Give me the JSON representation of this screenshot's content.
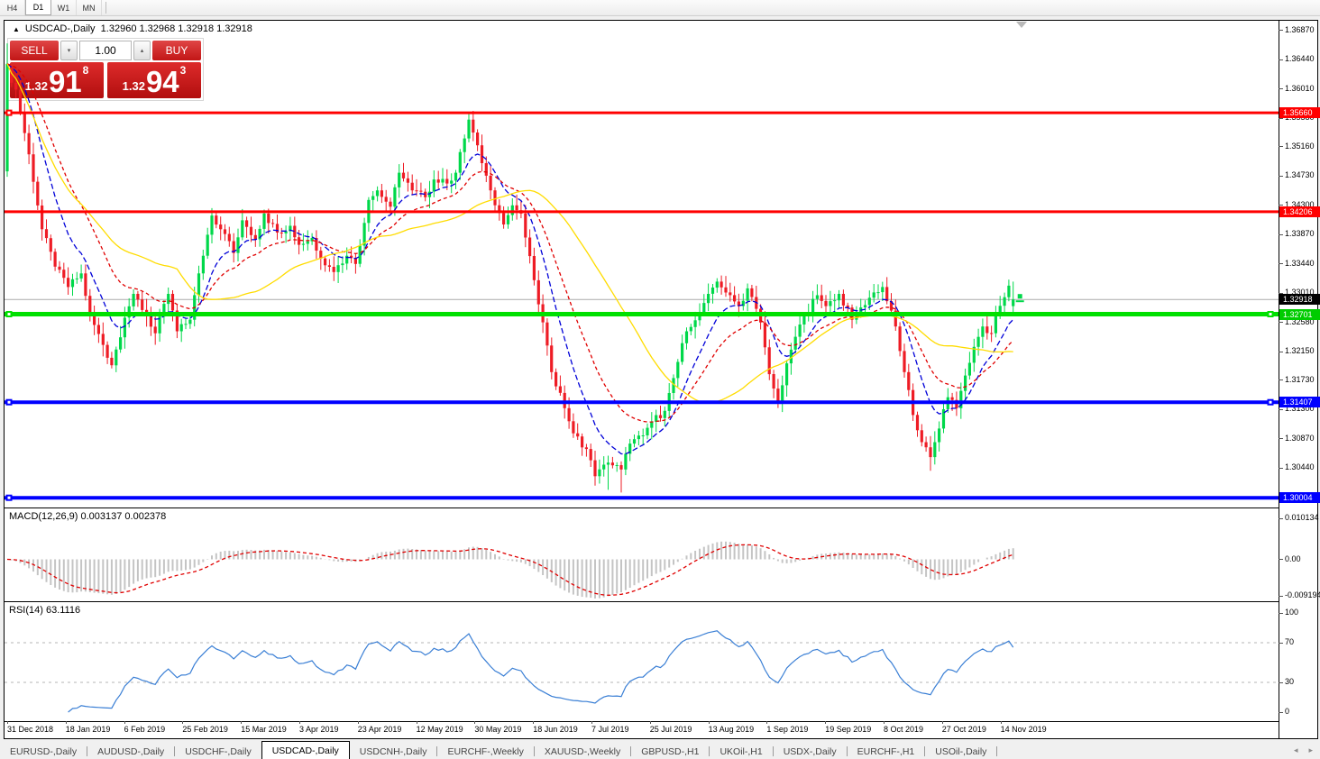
{
  "toolbar": {
    "timeframes": [
      {
        "label": "H4",
        "active": false
      },
      {
        "label": "D1",
        "active": true
      },
      {
        "label": "W1",
        "active": false
      },
      {
        "label": "MN",
        "active": false
      }
    ]
  },
  "chart": {
    "collapse_icon": "▲",
    "title": "USDCAD-,Daily",
    "quote": "1.32960 1.32968 1.32918 1.32918",
    "trade_panel": {
      "sell_label": "SELL",
      "buy_label": "BUY",
      "volume": "1.00",
      "spinner_down": "▾",
      "spinner_up": "▴",
      "sell_price": {
        "frac": "1.32",
        "big": "91",
        "sup": "8"
      },
      "buy_price": {
        "frac": "1.32",
        "big": "94",
        "sup": "3"
      }
    }
  },
  "chart_data": {
    "type": "candlestick",
    "symbol": "USDCAD",
    "timeframe": "Daily",
    "num_candles": 232,
    "colors": {
      "up": "#00D84A",
      "down": "#EE1C25",
      "hist": "#c4c4c4",
      "current_line": "#ababab"
    },
    "price_keyframes": [
      [
        0,
        1.363
      ],
      [
        2,
        1.36
      ],
      [
        5,
        1.3505
      ],
      [
        8,
        1.3395
      ],
      [
        11,
        1.334
      ],
      [
        14,
        1.331
      ],
      [
        17,
        1.333
      ],
      [
        19,
        1.3268
      ],
      [
        22,
        1.3225
      ],
      [
        24,
        1.3195
      ],
      [
        27,
        1.3265
      ],
      [
        29,
        1.33
      ],
      [
        32,
        1.3268
      ],
      [
        34,
        1.3242
      ],
      [
        37,
        1.33
      ],
      [
        39,
        1.3245
      ],
      [
        42,
        1.3262
      ],
      [
        44,
        1.333
      ],
      [
        47,
        1.3415
      ],
      [
        50,
        1.3388
      ],
      [
        52,
        1.336
      ],
      [
        54,
        1.3408
      ],
      [
        57,
        1.338
      ],
      [
        59,
        1.3418
      ],
      [
        62,
        1.339
      ],
      [
        65,
        1.34
      ],
      [
        67,
        1.3372
      ],
      [
        70,
        1.3382
      ],
      [
        72,
        1.3352
      ],
      [
        75,
        1.3332
      ],
      [
        78,
        1.3356
      ],
      [
        80,
        1.3344
      ],
      [
        83,
        1.3438
      ],
      [
        85,
        1.3452
      ],
      [
        88,
        1.3428
      ],
      [
        90,
        1.3478
      ],
      [
        93,
        1.3452
      ],
      [
        96,
        1.3442
      ],
      [
        98,
        1.3468
      ],
      [
        101,
        1.3462
      ],
      [
        103,
        1.3478
      ],
      [
        106,
        1.3556
      ],
      [
        109,
        1.3492
      ],
      [
        111,
        1.3452
      ],
      [
        114,
        1.3402
      ],
      [
        116,
        1.343
      ],
      [
        118,
        1.3418
      ],
      [
        121,
        1.332
      ],
      [
        123,
        1.3258
      ],
      [
        125,
        1.3185
      ],
      [
        128,
        1.3132
      ],
      [
        130,
        1.3095
      ],
      [
        133,
        1.3072
      ],
      [
        135,
        1.3032
      ],
      [
        138,
        1.3052
      ],
      [
        141,
        1.3042
      ],
      [
        143,
        1.308
      ],
      [
        146,
        1.3092
      ],
      [
        148,
        1.3112
      ],
      [
        151,
        1.3128
      ],
      [
        154,
        1.32
      ],
      [
        156,
        1.3245
      ],
      [
        159,
        1.3272
      ],
      [
        161,
        1.33
      ],
      [
        163,
        1.3318
      ],
      [
        165,
        1.3302
      ],
      [
        168,
        1.3282
      ],
      [
        170,
        1.3308
      ],
      [
        173,
        1.3258
      ],
      [
        175,
        1.3182
      ],
      [
        177,
        1.3142
      ],
      [
        180,
        1.3218
      ],
      [
        183,
        1.3268
      ],
      [
        186,
        1.3298
      ],
      [
        188,
        1.3282
      ],
      [
        191,
        1.33
      ],
      [
        194,
        1.3262
      ],
      [
        196,
        1.328
      ],
      [
        199,
        1.3302
      ],
      [
        201,
        1.331
      ],
      [
        204,
        1.3252
      ],
      [
        206,
        1.3185
      ],
      [
        208,
        1.3122
      ],
      [
        210,
        1.3082
      ],
      [
        212,
        1.306
      ],
      [
        214,
        1.3102
      ],
      [
        216,
        1.3148
      ],
      [
        218,
        1.3132
      ],
      [
        220,
        1.318
      ],
      [
        222,
        1.3222
      ],
      [
        224,
        1.3252
      ],
      [
        226,
        1.3242
      ],
      [
        227,
        1.3272
      ],
      [
        229,
        1.3295
      ],
      [
        230,
        1.3312
      ],
      [
        231,
        1.3292
      ]
    ],
    "candle_overrides": {
      "0": {
        "o": 1.348,
        "c": 1.3638,
        "h": 1.3668,
        "l": 1.3472
      },
      "106": {
        "h": 1.3565
      },
      "138": {
        "l": 1.3012
      },
      "141": {
        "l": 1.3008
      },
      "212": {
        "l": 1.304
      },
      "231": {
        "o": 1.3282,
        "c": 1.32918,
        "h": 1.3318,
        "l": 1.327
      }
    },
    "moving_averages": [
      {
        "name": "fast-ma",
        "period": 10,
        "color": "#0000D8",
        "dash": "6 3"
      },
      {
        "name": "mid-ma",
        "period": 21,
        "color": "#E00000",
        "dash": "4 3"
      },
      {
        "name": "slow-ma",
        "period": 40,
        "color": "#FFDC00",
        "dash": null
      }
    ],
    "hlines": [
      {
        "price": 1.3566,
        "label": "1.35660",
        "color": "#FF0000",
        "width": 3,
        "badge_bg": "#FF0000",
        "handles": [
          "left"
        ]
      },
      {
        "price": 1.34206,
        "label": "1.34206",
        "color": "#FF0000",
        "width": 3,
        "badge_bg": "#FF0000",
        "handles": []
      },
      {
        "price": 1.32701,
        "label": "1.32701",
        "color": "#00E000",
        "width": 5,
        "badge_bg": "#00CC00",
        "handles": [
          "left",
          "right"
        ]
      },
      {
        "price": 1.31407,
        "label": "1.31407",
        "color": "#0000FF",
        "width": 4,
        "badge_bg": "#0000FF",
        "handles": [
          "left",
          "right"
        ]
      },
      {
        "price": 1.30004,
        "label": "1.30004",
        "color": "#0000FF",
        "width": 4,
        "badge_bg": "#0000FF",
        "handles": [
          "left"
        ]
      }
    ],
    "current_price": {
      "value": 1.32918,
      "label": "1.32918",
      "badge_bg": "#000000"
    },
    "y_axis": {
      "ticks": [
        "1.36870",
        "1.36440",
        "1.36010",
        "1.35580",
        "1.35160",
        "1.34730",
        "1.34300",
        "1.33870",
        "1.33440",
        "1.33010",
        "1.32580",
        "1.32150",
        "1.31730",
        "1.31300",
        "1.30870",
        "1.30440"
      ]
    },
    "x_axis": {
      "labels": [
        "31 Dec 2018",
        "18 Jan 2019",
        "6 Feb 2019",
        "25 Feb 2019",
        "15 Mar 2019",
        "3 Apr 2019",
        "23 Apr 2019",
        "12 May 2019",
        "30 May 2019",
        "18 Jun 2019",
        "7 Jul 2019",
        "25 Jul 2019",
        "13 Aug 2019",
        "1 Sep 2019",
        "19 Sep 2019",
        "8 Oct 2019",
        "27 Oct 2019",
        "14 Nov 2019"
      ]
    },
    "macd": {
      "label": "MACD(12,26,9) 0.003137 0.002378",
      "axis": [
        {
          "text": "0.010134",
          "value": 0.010134
        },
        {
          "text": "0.00",
          "value": 0
        },
        {
          "text": "-0.009194",
          "value": -0.009194
        }
      ],
      "signal_color": "#E00000"
    },
    "rsi": {
      "label": "RSI(14) 63.1116",
      "axis": [
        {
          "text": "100",
          "value": 100
        },
        {
          "text": "70",
          "value": 70
        },
        {
          "text": "30",
          "value": 30
        },
        {
          "text": "0",
          "value": 0
        }
      ],
      "levels": [
        70,
        30
      ],
      "color": "#3a7fd5"
    }
  },
  "tabbar": {
    "tabs": [
      {
        "label": "EURUSD-,Daily",
        "active": false
      },
      {
        "label": "AUDUSD-,Daily",
        "active": false
      },
      {
        "label": "USDCHF-,Daily",
        "active": false
      },
      {
        "label": "USDCAD-,Daily",
        "active": true
      },
      {
        "label": "USDCNH-,Daily",
        "active": false
      },
      {
        "label": "EURCHF-,Weekly",
        "active": false
      },
      {
        "label": "XAUUSD-,Weekly",
        "active": false
      },
      {
        "label": "GBPUSD-,H1",
        "active": false
      },
      {
        "label": "UKOil-,H1",
        "active": false
      },
      {
        "label": "USDX-,Daily",
        "active": false
      },
      {
        "label": "EURCHF-,H1",
        "active": false
      },
      {
        "label": "USOil-,Daily",
        "active": false
      }
    ],
    "scroll_left": "◂",
    "scroll_right": "▸"
  }
}
